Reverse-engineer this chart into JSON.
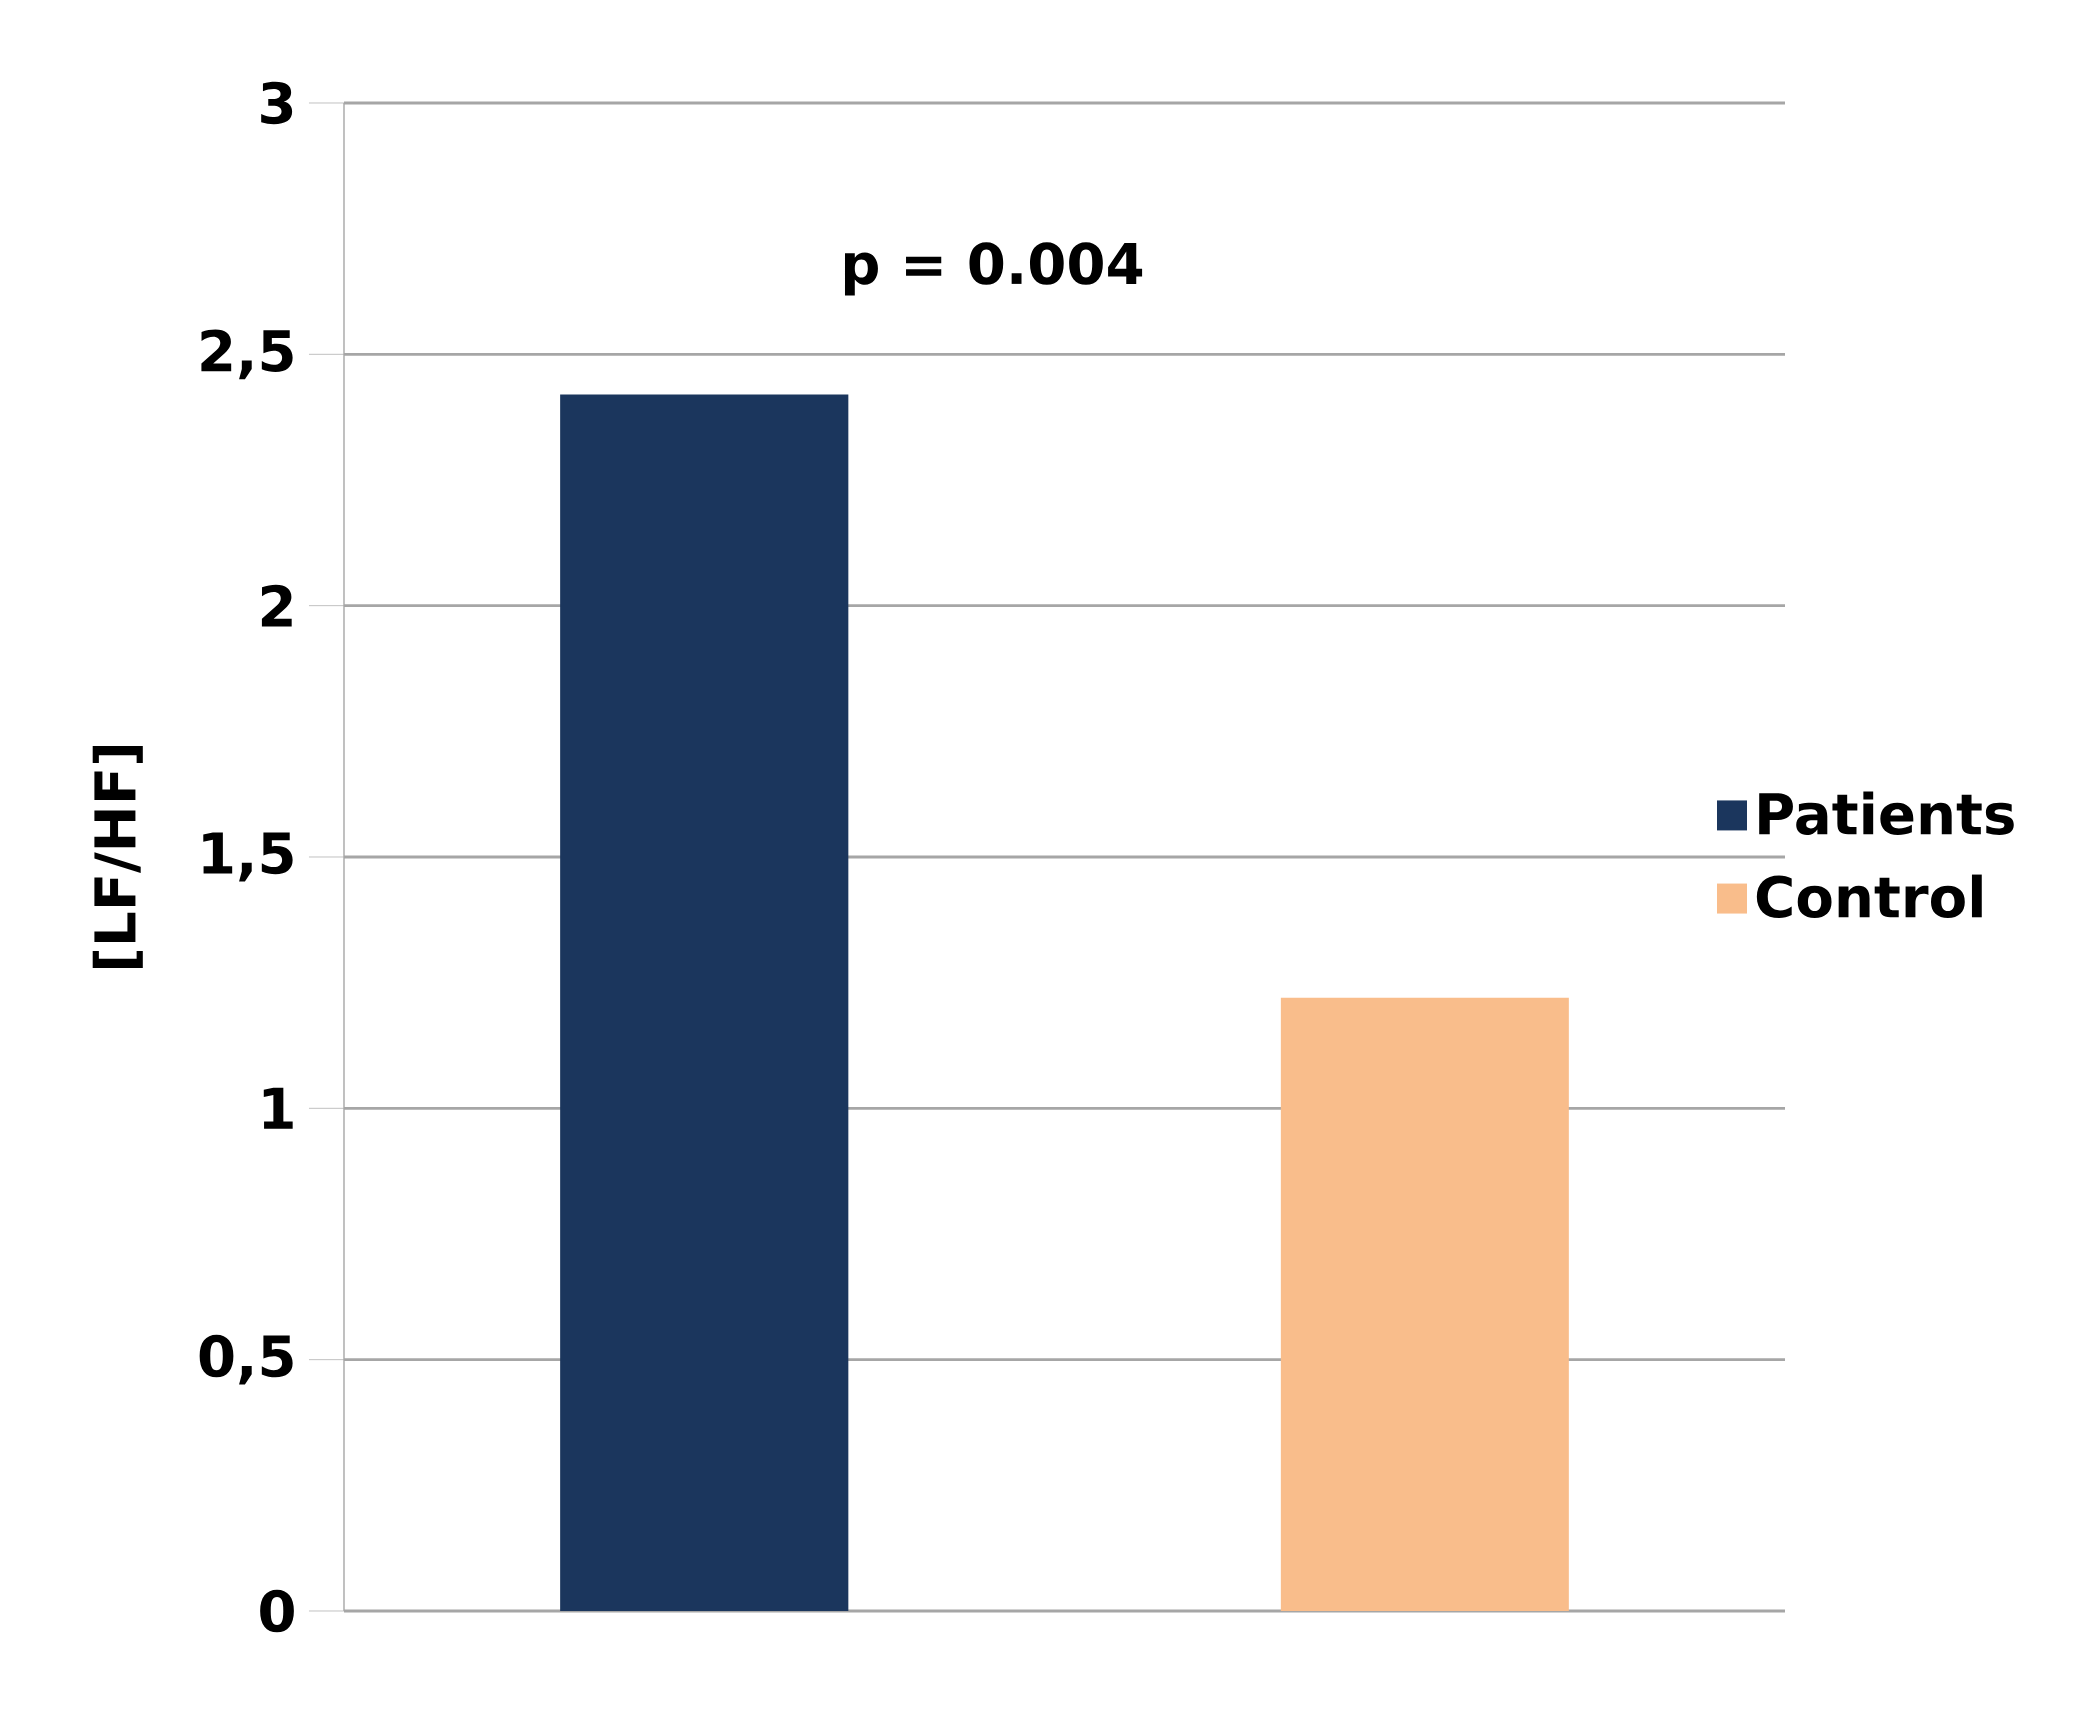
{
  "chart_data": {
    "type": "bar",
    "ylabel": "[LF/HF]",
    "categories": [
      null,
      null
    ],
    "series": [
      {
        "name": "Patients",
        "color": "#1b365d",
        "values": [
          2.42,
          null
        ]
      },
      {
        "name": "Control",
        "color": "#f9bd8b",
        "values": [
          null,
          1.22
        ]
      }
    ],
    "ylim": [
      0,
      3
    ],
    "yticks": [
      0,
      {
        "value": 0.5,
        "label": "0,5"
      },
      1,
      {
        "value": 1.5,
        "label": "1,5"
      },
      2,
      {
        "value": 2.5,
        "label": "2,5"
      },
      3
    ],
    "annotations": [
      "p = 0.004"
    ],
    "grid": "y",
    "legend": "right"
  }
}
